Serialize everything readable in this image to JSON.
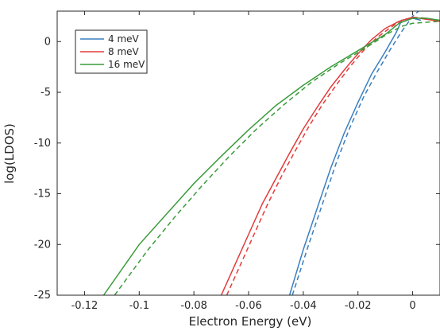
{
  "chart_data": {
    "type": "line",
    "title": "",
    "xlabel": "Electron Energy (eV)",
    "ylabel": "log(LDOS)",
    "xlim": [
      -0.13,
      0.01
    ],
    "ylim": [
      -25,
      3
    ],
    "xticks": [
      -0.12,
      -0.1,
      -0.08,
      -0.06,
      -0.04,
      -0.02,
      0
    ],
    "xtick_labels": [
      "-0.12",
      "-0.1",
      "-0.08",
      "-0.06",
      "-0.04",
      "-0.02",
      "0"
    ],
    "yticks": [
      -25,
      -20,
      -15,
      -10,
      -5,
      0
    ],
    "ytick_labels": [
      "-25",
      "-20",
      "-15",
      "-10",
      "-5",
      "0"
    ],
    "grid": false,
    "legend_position": "top-left",
    "series": [
      {
        "name": "4 meV",
        "color": "#3a7fc1",
        "solid": [
          [
            -0.045,
            -25
          ],
          [
            -0.04,
            -20.5
          ],
          [
            -0.035,
            -16.5
          ],
          [
            -0.03,
            -12.5
          ],
          [
            -0.025,
            -9
          ],
          [
            -0.02,
            -6
          ],
          [
            -0.015,
            -3.2
          ],
          [
            -0.01,
            -1
          ],
          [
            -0.006,
            0.9
          ],
          [
            -0.004,
            2.1
          ],
          [
            0,
            2.3
          ],
          [
            0.003,
            2.1
          ]
        ],
        "dashed": [
          [
            -0.044,
            -25
          ],
          [
            -0.038,
            -20
          ],
          [
            -0.033,
            -16
          ],
          [
            -0.028,
            -12
          ],
          [
            -0.023,
            -8.5
          ],
          [
            -0.018,
            -5.5
          ],
          [
            -0.013,
            -3
          ],
          [
            -0.008,
            -0.7
          ],
          [
            -0.004,
            1
          ],
          [
            0,
            2.5
          ],
          [
            0.003,
            3.2
          ]
        ]
      },
      {
        "name": "8 meV",
        "color": "#e33b3b",
        "solid": [
          [
            -0.07,
            -25
          ],
          [
            -0.065,
            -22
          ],
          [
            -0.06,
            -19
          ],
          [
            -0.055,
            -16
          ],
          [
            -0.05,
            -13.5
          ],
          [
            -0.045,
            -11
          ],
          [
            -0.04,
            -8.6
          ],
          [
            -0.035,
            -6.5
          ],
          [
            -0.03,
            -4.5
          ],
          [
            -0.025,
            -2.8
          ],
          [
            -0.02,
            -1.2
          ],
          [
            -0.015,
            0.2
          ],
          [
            -0.01,
            1.3
          ],
          [
            -0.005,
            2.0
          ],
          [
            0,
            2.4
          ],
          [
            0.005,
            2.2
          ],
          [
            0.01,
            2.0
          ]
        ],
        "dashed": [
          [
            -0.068,
            -25
          ],
          [
            -0.063,
            -22
          ],
          [
            -0.058,
            -19
          ],
          [
            -0.053,
            -16
          ],
          [
            -0.048,
            -13.3
          ],
          [
            -0.043,
            -10.8
          ],
          [
            -0.038,
            -8.4
          ],
          [
            -0.033,
            -6.2
          ],
          [
            -0.028,
            -4.3
          ],
          [
            -0.023,
            -2.5
          ],
          [
            -0.018,
            -0.9
          ],
          [
            -0.013,
            0.4
          ],
          [
            -0.008,
            1.4
          ],
          [
            -0.004,
            2.1
          ],
          [
            0,
            2.4
          ],
          [
            0.005,
            2.3
          ],
          [
            0.01,
            2.0
          ]
        ]
      },
      {
        "name": "16 meV",
        "color": "#3a9b3a",
        "solid": [
          [
            -0.113,
            -25
          ],
          [
            -0.1,
            -20
          ],
          [
            -0.09,
            -17
          ],
          [
            -0.08,
            -14
          ],
          [
            -0.07,
            -11.3
          ],
          [
            -0.06,
            -8.7
          ],
          [
            -0.05,
            -6.3
          ],
          [
            -0.04,
            -4.3
          ],
          [
            -0.03,
            -2.5
          ],
          [
            -0.02,
            -0.9
          ],
          [
            -0.01,
            0.7
          ],
          [
            -0.005,
            1.8
          ],
          [
            0,
            2.3
          ],
          [
            0.005,
            2.3
          ],
          [
            0.01,
            2.1
          ]
        ],
        "dashed": [
          [
            -0.109,
            -25
          ],
          [
            -0.097,
            -20.6
          ],
          [
            -0.087,
            -17.3
          ],
          [
            -0.077,
            -14.2
          ],
          [
            -0.067,
            -11.3
          ],
          [
            -0.057,
            -8.6
          ],
          [
            -0.047,
            -6.2
          ],
          [
            -0.037,
            -4.0
          ],
          [
            -0.027,
            -2.2
          ],
          [
            -0.017,
            -0.6
          ],
          [
            -0.009,
            0.8
          ],
          [
            -0.004,
            1.5
          ],
          [
            0,
            1.8
          ],
          [
            0.005,
            1.9
          ],
          [
            0.01,
            2.0
          ]
        ]
      }
    ]
  }
}
